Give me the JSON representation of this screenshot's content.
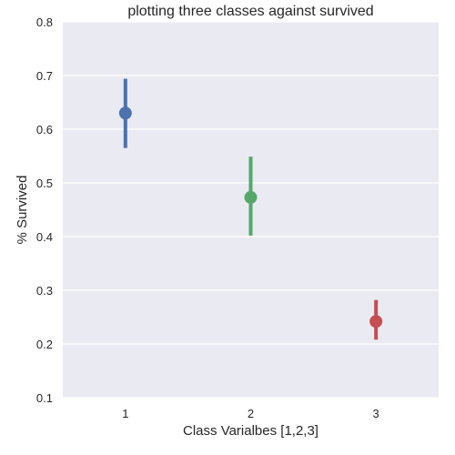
{
  "chart_data": {
    "type": "point",
    "title": "plotting three classes against survived",
    "xlabel": "Class Varialbes [1,2,3]",
    "ylabel": "% Survived",
    "categories": [
      "1",
      "2",
      "3"
    ],
    "values": [
      0.63,
      0.473,
      0.242
    ],
    "ci_low": [
      0.565,
      0.402,
      0.208
    ],
    "ci_high": [
      0.694,
      0.549,
      0.282
    ],
    "colors": [
      "#4C72B0",
      "#55A868",
      "#C44E52"
    ],
    "ylim": [
      0.1,
      0.8
    ],
    "yticks": [
      "0.1",
      "0.2",
      "0.3",
      "0.4",
      "0.5",
      "0.6",
      "0.7",
      "0.8"
    ],
    "grid": true,
    "background": "#EAEAF2"
  }
}
